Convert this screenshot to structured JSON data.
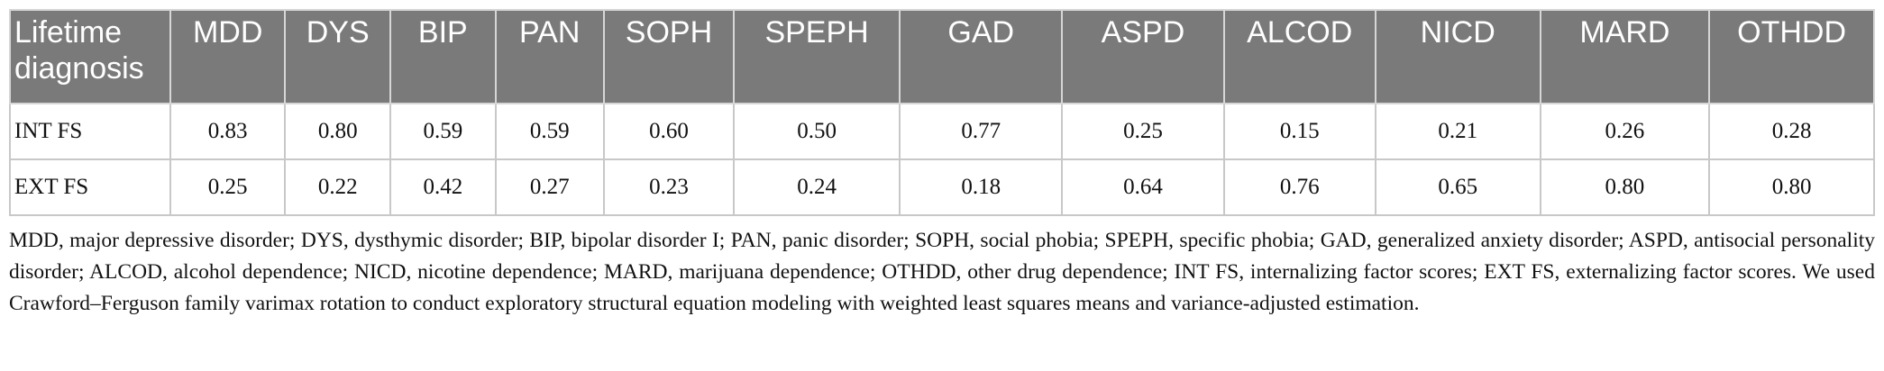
{
  "table": {
    "corner_header": "Lifetime diagnosis",
    "columns": [
      "MDD",
      "DYS",
      "BIP",
      "PAN",
      "SOPH",
      "SPEPH",
      "GAD",
      "ASPD",
      "ALCOD",
      "NICD",
      "MARD",
      "OTHDD"
    ],
    "rows": [
      {
        "label": "INT FS",
        "values": [
          "0.83",
          "0.80",
          "0.59",
          "0.59",
          "0.60",
          "0.50",
          "0.77",
          "0.25",
          "0.15",
          "0.21",
          "0.26",
          "0.28"
        ]
      },
      {
        "label": "EXT FS",
        "values": [
          "0.25",
          "0.22",
          "0.42",
          "0.27",
          "0.23",
          "0.24",
          "0.18",
          "0.64",
          "0.76",
          "0.65",
          "0.80",
          "0.80"
        ]
      }
    ]
  },
  "footnote": "MDD, major depressive disorder; DYS, dysthymic disorder; BIP, bipolar disorder I; PAN, panic disorder; SOPH, social phobia; SPEPH, specific phobia; GAD, generalized anxiety disorder; ASPD, antisocial personality disorder; ALCOD, alcohol dependence; NICD, nicotine dependence; MARD, marijuana dependence; OTHDD, other drug dependence; INT FS, internalizing factor scores; EXT FS, externalizing factor scores. We used Crawford–Ferguson family varimax rotation to conduct exploratory structural equation modeling with weighted least squares means and variance-adjusted estimation."
}
